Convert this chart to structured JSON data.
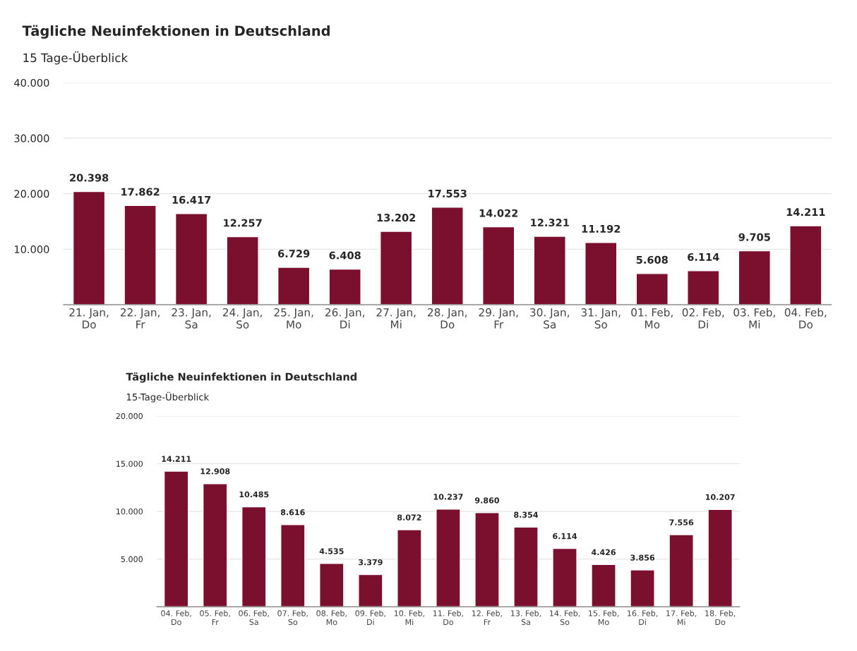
{
  "chart_data": [
    {
      "type": "bar",
      "title": "Tägliche Neuinfektionen in Deutschland",
      "subtitle": "15 Tage-Überblick",
      "categories": [
        "21. Jan,\nDo",
        "22. Jan,\nFr",
        "23. Jan,\nSa",
        "24. Jan,\nSo",
        "25. Jan,\nMo",
        "26. Jan,\nDi",
        "27. Jan,\nMi",
        "28. Jan,\nDo",
        "29. Jan,\nFr",
        "30. Jan,\nSa",
        "31. Jan,\nSo",
        "01. Feb,\nMo",
        "02. Feb,\nDi",
        "03. Feb,\nMi",
        "04. Feb,\nDo"
      ],
      "values": [
        20398,
        17862,
        16417,
        12257,
        6729,
        6408,
        13202,
        17553,
        14022,
        12321,
        11192,
        5608,
        6114,
        9705,
        14211
      ],
      "value_labels": [
        "20.398",
        "17.862",
        "16.417",
        "12.257",
        "6.729",
        "6.408",
        "13.202",
        "17.553",
        "14.022",
        "12.321",
        "11.192",
        "5.608",
        "6.114",
        "9.705",
        "14.211"
      ],
      "color": "#7b0f2e",
      "ylim": [
        0,
        40000
      ],
      "yticks": [
        {
          "value": 10000,
          "label": "10.000"
        },
        {
          "value": 20000,
          "label": "20.000"
        },
        {
          "value": 30000,
          "label": "30.000"
        },
        {
          "value": 40000,
          "label": "40.000"
        }
      ],
      "grid": "y"
    },
    {
      "type": "bar",
      "title": "Tägliche Neuinfektionen in Deutschland",
      "subtitle": "15-Tage-Überblick",
      "categories": [
        "04. Feb,\nDo",
        "05. Feb,\nFr",
        "06. Feb,\nSa",
        "07. Feb,\nSo",
        "08. Feb,\nMo",
        "09. Feb,\nDi",
        "10. Feb,\nMi",
        "11. Feb,\nDo",
        "12. Feb,\nFr",
        "13. Feb,\nSa",
        "14. Feb,\nSo",
        "15. Feb,\nMo",
        "16. Feb,\nDi",
        "17. Feb,\nMi",
        "18. Feb,\nDo"
      ],
      "values": [
        14211,
        12908,
        10485,
        8616,
        4535,
        3379,
        8072,
        10237,
        9860,
        8354,
        6114,
        4426,
        3856,
        7556,
        10207
      ],
      "value_labels": [
        "14.211",
        "12.908",
        "10.485",
        "8.616",
        "4.535",
        "3.379",
        "8.072",
        "10.237",
        "9.860",
        "8.354",
        "6.114",
        "4.426",
        "3.856",
        "7.556",
        "10.207"
      ],
      "color": "#7b0f2e",
      "ylim": [
        0,
        20000
      ],
      "yticks": [
        {
          "value": 5000,
          "label": "5.000"
        },
        {
          "value": 10000,
          "label": "10.000"
        },
        {
          "value": 15000,
          "label": "15.000"
        },
        {
          "value": 20000,
          "label": "20.000"
        }
      ],
      "grid": "y"
    }
  ]
}
